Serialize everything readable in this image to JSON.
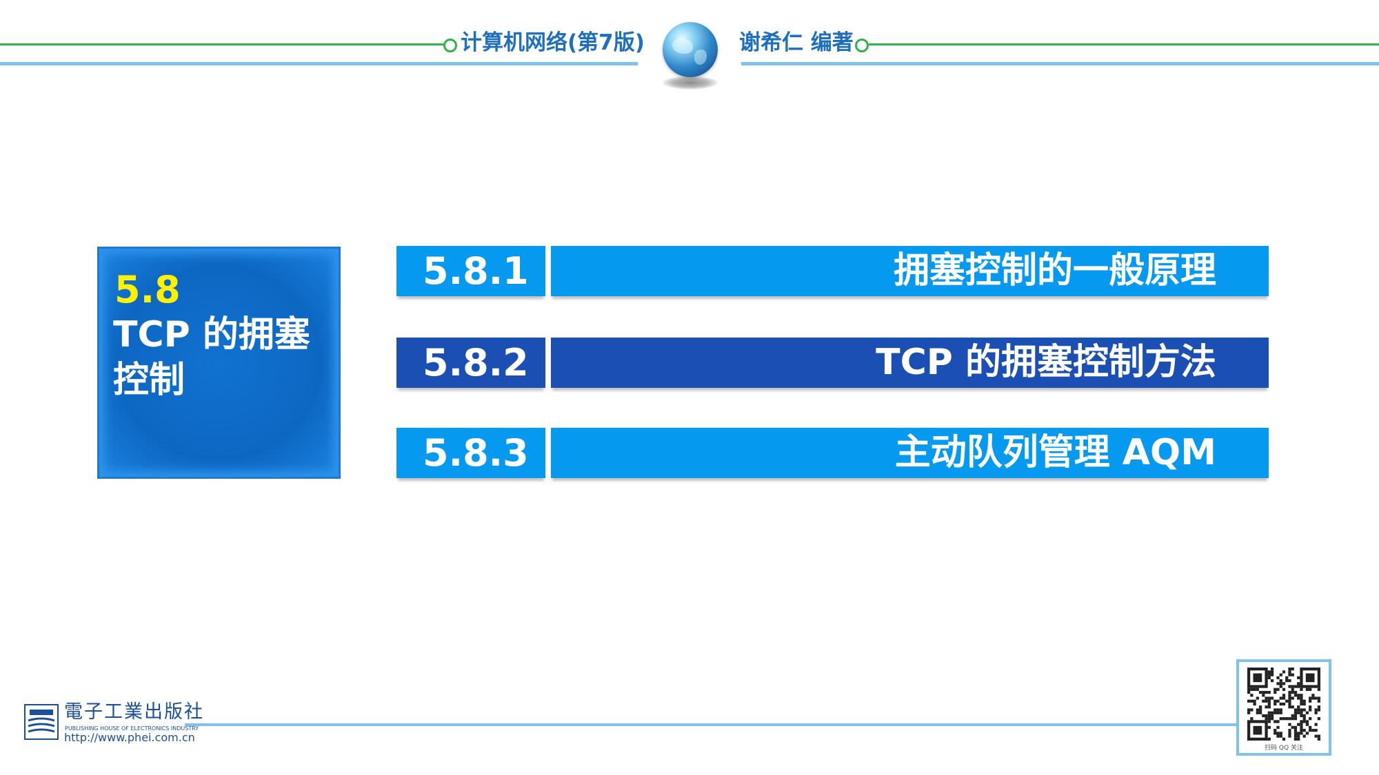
{
  "header": {
    "book_title": "计算机网络(第7版)",
    "author": "谢希仁 编著",
    "globe_icon": "globe-icon",
    "accent_green": "#2fb24a",
    "accent_blue": "#7fc2ec"
  },
  "section": {
    "number": "5.8",
    "title": "TCP 的拥塞控制",
    "number_color": "#fff200",
    "box_color": "#0d67c2"
  },
  "subsections": [
    {
      "number": "5.8.1",
      "title": "拥塞控制的一般原理",
      "color": "#0599f0"
    },
    {
      "number": "5.8.2",
      "title": "TCP 的拥塞控制方法",
      "color": "#1b4fb4"
    },
    {
      "number": "5.8.3",
      "title": "主动队列管理 AQM",
      "color": "#0599f0"
    }
  ],
  "footer": {
    "publisher_cn": "電子工業出版社",
    "publisher_en": "PUBLISHING HOUSE OF ELECTRONICS INDUSTRY",
    "publisher_url": "http://www.phei.com.cn",
    "qr_caption": "扫码 QQ 关注",
    "qr_icon": "qr-code-icon"
  }
}
